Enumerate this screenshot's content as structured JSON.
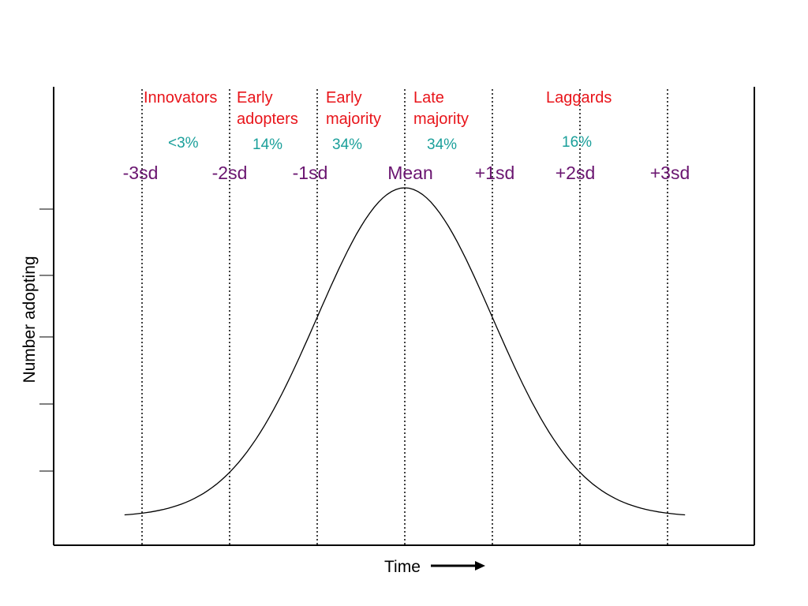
{
  "categories": [
    {
      "line1": "Innovators",
      "line2": ""
    },
    {
      "line1": "Early",
      "line2": "adopters"
    },
    {
      "line1": "Early",
      "line2": "majority"
    },
    {
      "line1": "Late",
      "line2": "majority"
    },
    {
      "line1": "Laggards",
      "line2": ""
    }
  ],
  "percentages": [
    "<3%",
    "14%",
    "34%",
    "34%",
    "16%"
  ],
  "sd_labels": [
    "-3sd",
    "-2sd",
    "-1sd",
    "Mean",
    "+1sd",
    "+2sd",
    "+3sd"
  ],
  "axes": {
    "x_label": "Time",
    "y_label": "Number adopting"
  },
  "colors": {
    "category": "#e8141a",
    "percentage": "#1a9f9a",
    "sd_label": "#6a1570",
    "curve": "#000000"
  },
  "curve": {
    "type": "normal-distribution",
    "sd_range": [
      -3.2,
      3.2
    ]
  }
}
